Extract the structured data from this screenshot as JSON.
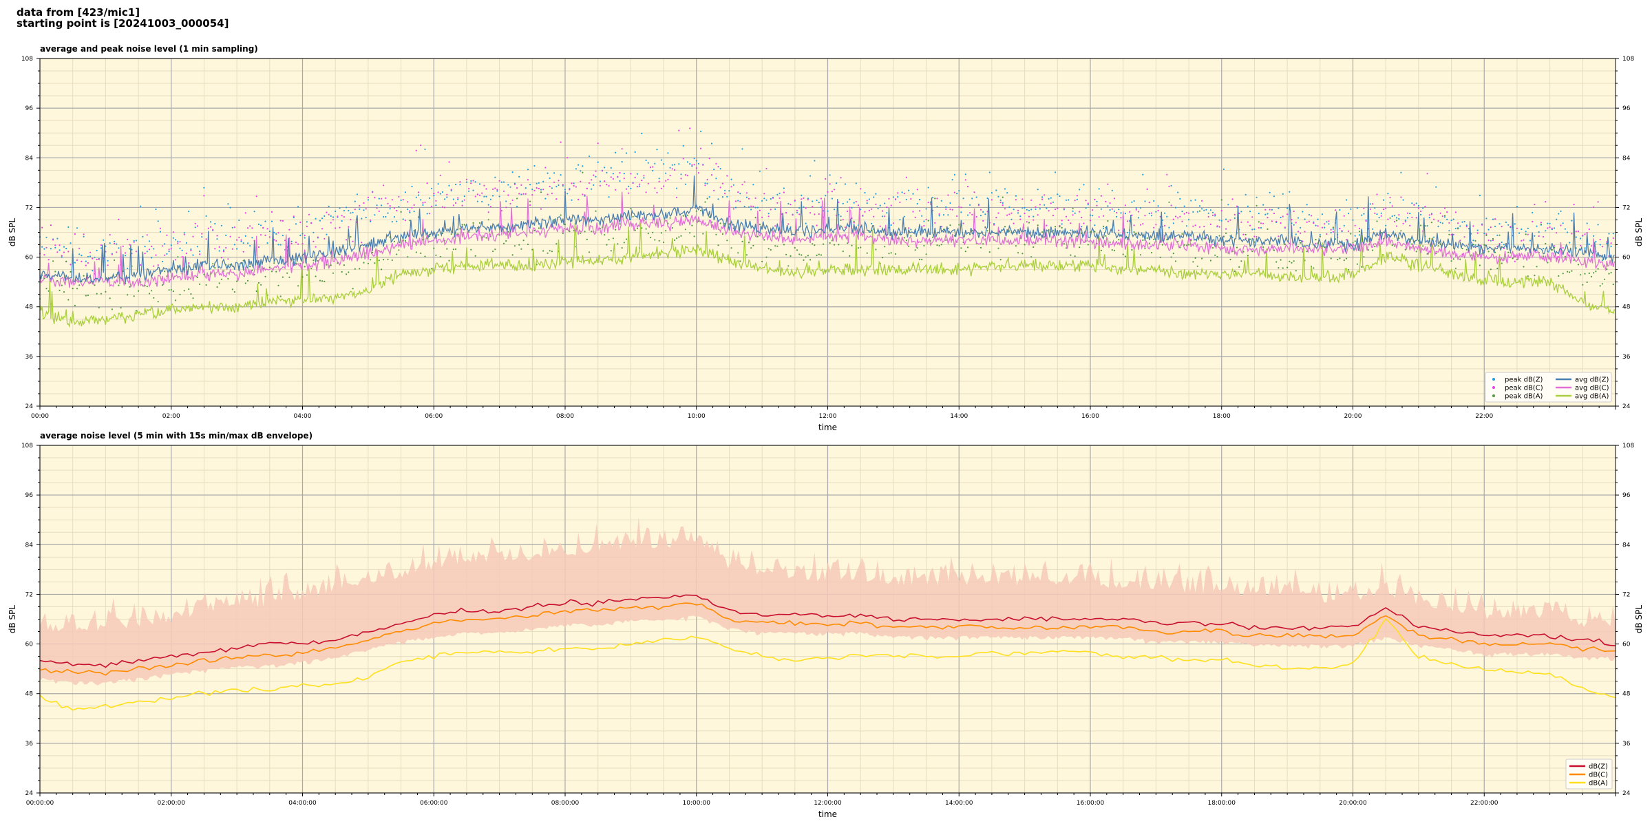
{
  "header": {
    "line1": "data from [423/mic1]",
    "line2": "starting point is [20241003_000054]"
  },
  "colors": {
    "plot_bg": "#fff7db",
    "grid_major": "#a9a9a9",
    "grid_minor": "#e6ddc0",
    "peak_z": "#1f9ee0",
    "peak_c": "#e640e6",
    "peak_a": "#4f9a3f",
    "avg_z": "#4a7fb0",
    "avg_c": "#e070d6",
    "avg_a": "#a9cf3c",
    "env_z": "#c8102e",
    "env_c": "#ff8c00",
    "env_a": "#ffe020",
    "envelope": "#f6c9b8"
  },
  "chart_data": [
    {
      "type": "line",
      "title": "average and peak noise level (1 min sampling)",
      "xlabel": "time",
      "ylabel": "dB SPL",
      "ylabel_right": "dB SPL",
      "xlim_hours": [
        0,
        24
      ],
      "ylim": [
        24,
        108
      ],
      "yticks": [
        "24",
        "36",
        "48",
        "60",
        "72",
        "84",
        "96",
        "108"
      ],
      "xtick_hours": [
        0,
        2,
        4,
        6,
        8,
        10,
        12,
        14,
        16,
        18,
        20,
        22
      ],
      "xticks": [
        "00:00",
        "02:00",
        "04:00",
        "06:00",
        "08:00",
        "10:00",
        "12:00",
        "14:00",
        "16:00",
        "18:00",
        "20:00",
        "22:00"
      ],
      "grid": true,
      "legend_position": "lower-right",
      "legend": [
        "peak dB(Z)",
        "peak dB(C)",
        "peak dB(A)",
        "avg dB(Z)",
        "avg dB(C)",
        "avg dB(A)"
      ],
      "x_hours": [
        0,
        0.5,
        1,
        1.5,
        2,
        2.5,
        3,
        3.5,
        4,
        4.5,
        5,
        5.5,
        6,
        6.5,
        7,
        7.5,
        8,
        8.5,
        9,
        9.5,
        10,
        10.5,
        11,
        11.5,
        12,
        12.5,
        13,
        13.5,
        14,
        14.5,
        15,
        15.5,
        16,
        16.5,
        17,
        17.5,
        18,
        18.5,
        19,
        19.5,
        20,
        20.5,
        21,
        21.5,
        22,
        22.5,
        23,
        23.5,
        24
      ],
      "series": [
        {
          "name": "avg dB(Z)",
          "style": "line",
          "values": [
            56,
            55,
            55,
            56,
            57,
            58,
            58,
            59,
            60,
            61,
            63,
            65,
            66,
            67,
            67,
            68,
            69,
            69,
            70,
            70,
            72,
            68,
            67,
            66,
            67,
            67,
            66,
            66,
            66,
            66,
            66,
            66,
            66,
            65,
            65,
            65,
            64,
            64,
            64,
            63,
            63,
            66,
            64,
            63,
            62,
            62,
            62,
            61,
            60
          ]
        },
        {
          "name": "avg dB(C)",
          "style": "line",
          "values": [
            55,
            54,
            54,
            54,
            55,
            56,
            56,
            57,
            58,
            59,
            61,
            63,
            64,
            65,
            65,
            66,
            67,
            67,
            68,
            68,
            69,
            66,
            65,
            64,
            65,
            65,
            64,
            64,
            64,
            64,
            64,
            64,
            64,
            63,
            63,
            63,
            62,
            62,
            62,
            62,
            62,
            64,
            62,
            61,
            60,
            60,
            60,
            59,
            58
          ]
        },
        {
          "name": "avg dB(A)",
          "style": "line",
          "values": [
            47,
            44,
            45,
            46,
            47,
            48,
            48,
            49,
            50,
            50,
            52,
            56,
            57,
            58,
            58,
            58,
            59,
            59,
            60,
            61,
            62,
            59,
            57,
            56,
            57,
            57,
            57,
            57,
            57,
            58,
            58,
            58,
            58,
            57,
            57,
            56,
            56,
            56,
            55,
            55,
            56,
            60,
            58,
            56,
            54,
            54,
            54,
            49,
            47
          ]
        },
        {
          "name": "peak dB(Z)",
          "style": "points",
          "values": [
            63,
            62,
            61,
            62,
            63,
            64,
            65,
            66,
            67,
            69,
            71,
            73,
            75,
            76,
            77,
            77,
            78,
            79,
            80,
            80,
            82,
            76,
            74,
            72,
            73,
            73,
            72,
            72,
            72,
            72,
            72,
            72,
            72,
            71,
            71,
            70,
            69,
            69,
            69,
            68,
            68,
            72,
            70,
            68,
            66,
            66,
            66,
            65,
            64
          ]
        },
        {
          "name": "peak dB(C)",
          "style": "points",
          "values": [
            62,
            61,
            60,
            61,
            62,
            63,
            64,
            65,
            66,
            68,
            70,
            72,
            74,
            75,
            76,
            76,
            77,
            78,
            79,
            79,
            81,
            75,
            73,
            71,
            72,
            72,
            71,
            71,
            71,
            71,
            71,
            71,
            71,
            70,
            70,
            69,
            68,
            68,
            68,
            67,
            67,
            71,
            69,
            67,
            65,
            65,
            65,
            64,
            63
          ]
        },
        {
          "name": "peak dB(A)",
          "style": "points",
          "values": [
            54,
            52,
            52,
            53,
            54,
            55,
            55,
            56,
            57,
            57,
            59,
            62,
            63,
            64,
            64,
            64,
            65,
            65,
            66,
            67,
            68,
            65,
            63,
            62,
            63,
            63,
            63,
            63,
            63,
            64,
            64,
            64,
            64,
            63,
            63,
            62,
            62,
            62,
            61,
            61,
            62,
            66,
            64,
            62,
            60,
            60,
            60,
            56,
            54
          ]
        }
      ]
    },
    {
      "type": "line",
      "title": "average noise level (5 min with 15s min/max dB envelope)",
      "xlabel": "time",
      "ylabel": "dB SPL",
      "ylabel_right": "dB SPL",
      "xlim_hours": [
        0,
        24
      ],
      "ylim": [
        24,
        108
      ],
      "yticks": [
        "24",
        "36",
        "48",
        "60",
        "72",
        "84",
        "96",
        "108"
      ],
      "xtick_hours": [
        0,
        2,
        4,
        6,
        8,
        10,
        12,
        14,
        16,
        18,
        20,
        22
      ],
      "xticks": [
        "00:00:00",
        "02:00:00",
        "04:00:00",
        "06:00:00",
        "08:00:00",
        "10:00:00",
        "12:00:00",
        "14:00:00",
        "16:00:00",
        "18:00:00",
        "20:00:00",
        "22:00:00"
      ],
      "grid": true,
      "legend_position": "lower-right",
      "legend": [
        "dB(Z)",
        "dB(C)",
        "dB(A)"
      ],
      "x_hours": [
        0,
        0.5,
        1,
        1.5,
        2,
        2.5,
        3,
        3.5,
        4,
        4.5,
        5,
        5.5,
        6,
        6.5,
        7,
        7.5,
        8,
        8.5,
        9,
        9.5,
        10,
        10.5,
        11,
        11.5,
        12,
        12.5,
        13,
        13.5,
        14,
        14.5,
        15,
        15.5,
        16,
        16.5,
        17,
        17.5,
        18,
        18.5,
        19,
        19.5,
        20,
        20.5,
        21,
        21.5,
        22,
        22.5,
        23,
        23.5,
        24
      ],
      "series": [
        {
          "name": "dB(Z)",
          "style": "line",
          "values": [
            56,
            55,
            55,
            56,
            57,
            58,
            59,
            60,
            60,
            61,
            63,
            65,
            67,
            68,
            68,
            69,
            70,
            70,
            71,
            71,
            72,
            68,
            67,
            67,
            67,
            67,
            66,
            66,
            66,
            66,
            66,
            66,
            66,
            66,
            65,
            65,
            65,
            64,
            64,
            64,
            64,
            69,
            64,
            63,
            62,
            62,
            62,
            61,
            60
          ]
        },
        {
          "name": "dB(C)",
          "style": "line",
          "values": [
            54,
            53,
            53,
            54,
            55,
            56,
            57,
            57,
            58,
            59,
            61,
            63,
            65,
            66,
            66,
            67,
            68,
            68,
            69,
            69,
            70,
            66,
            65,
            65,
            65,
            65,
            64,
            64,
            64,
            64,
            64,
            64,
            64,
            64,
            63,
            63,
            63,
            62,
            62,
            62,
            62,
            67,
            62,
            61,
            60,
            60,
            60,
            59,
            58
          ]
        },
        {
          "name": "dB(A)",
          "style": "line",
          "values": [
            47,
            44,
            45,
            46,
            47,
            48,
            49,
            49,
            50,
            50,
            52,
            56,
            57,
            58,
            58,
            58,
            59,
            59,
            60,
            61,
            62,
            59,
            57,
            56,
            57,
            57,
            57,
            57,
            57,
            58,
            58,
            58,
            58,
            57,
            57,
            56,
            56,
            55,
            54,
            54,
            55,
            66,
            57,
            55,
            54,
            53,
            53,
            49,
            47
          ]
        },
        {
          "name": "dB(Z) max",
          "style": "envelope-upper",
          "values": [
            63,
            63,
            63,
            64,
            65,
            67,
            68,
            69,
            70,
            72,
            74,
            76,
            78,
            79,
            80,
            80,
            81,
            82,
            83,
            83,
            84,
            78,
            76,
            75,
            75,
            75,
            74,
            74,
            74,
            74,
            74,
            74,
            74,
            73,
            73,
            72,
            72,
            71,
            71,
            70,
            70,
            72,
            69,
            68,
            66,
            66,
            66,
            64,
            63
          ]
        },
        {
          "name": "dB(Z) min",
          "style": "envelope-lower",
          "values": [
            52,
            51,
            51,
            52,
            53,
            54,
            55,
            55,
            56,
            57,
            59,
            61,
            62,
            63,
            63,
            64,
            65,
            65,
            66,
            66,
            67,
            64,
            63,
            63,
            63,
            63,
            62,
            62,
            62,
            62,
            62,
            62,
            62,
            62,
            61,
            61,
            61,
            60,
            60,
            60,
            60,
            62,
            60,
            59,
            58,
            58,
            58,
            57,
            57
          ]
        }
      ]
    }
  ]
}
